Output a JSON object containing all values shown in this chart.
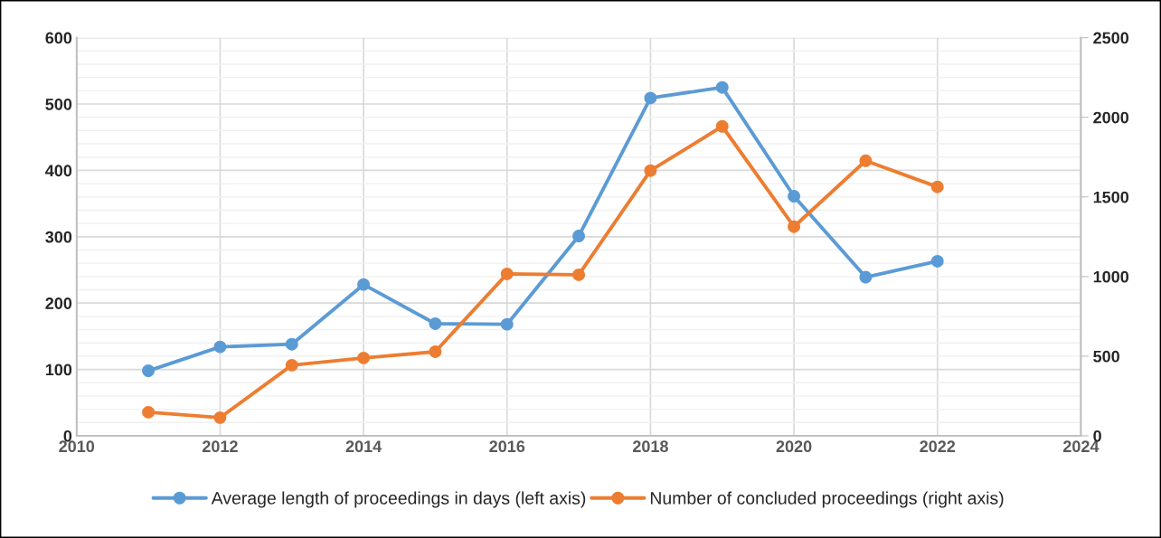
{
  "chart_data": {
    "type": "line",
    "x": [
      2011,
      2012,
      2013,
      2014,
      2015,
      2016,
      2017,
      2018,
      2019,
      2020,
      2021,
      2022
    ],
    "series": [
      {
        "name": "Average length of proceedings in days (left axis)",
        "color": "#5b9bd5",
        "values": [
          98,
          134,
          138,
          228,
          169,
          168,
          301,
          509,
          525,
          361,
          239,
          263
        ]
      },
      {
        "name": "Number of concluded proceedings (right axis)",
        "color": "#ed7d31",
        "axis": "y2",
        "values": [
          148,
          114,
          443,
          489,
          528,
          1017,
          1011,
          1665,
          1943,
          1313,
          1727,
          1563
        ]
      }
    ],
    "xlim": [
      2010,
      2024
    ],
    "xticks": [
      2010,
      2012,
      2014,
      2016,
      2018,
      2020,
      2022,
      2024
    ],
    "ylim": [
      0,
      600
    ],
    "yticks": [
      0,
      100,
      200,
      300,
      400,
      500,
      600
    ],
    "y2lim": [
      0,
      2500
    ],
    "y2ticks": [
      0,
      500,
      1000,
      1500,
      2000,
      2500
    ],
    "grid": true,
    "legend": "bottom",
    "marker": "circle",
    "line_style": "solid"
  }
}
